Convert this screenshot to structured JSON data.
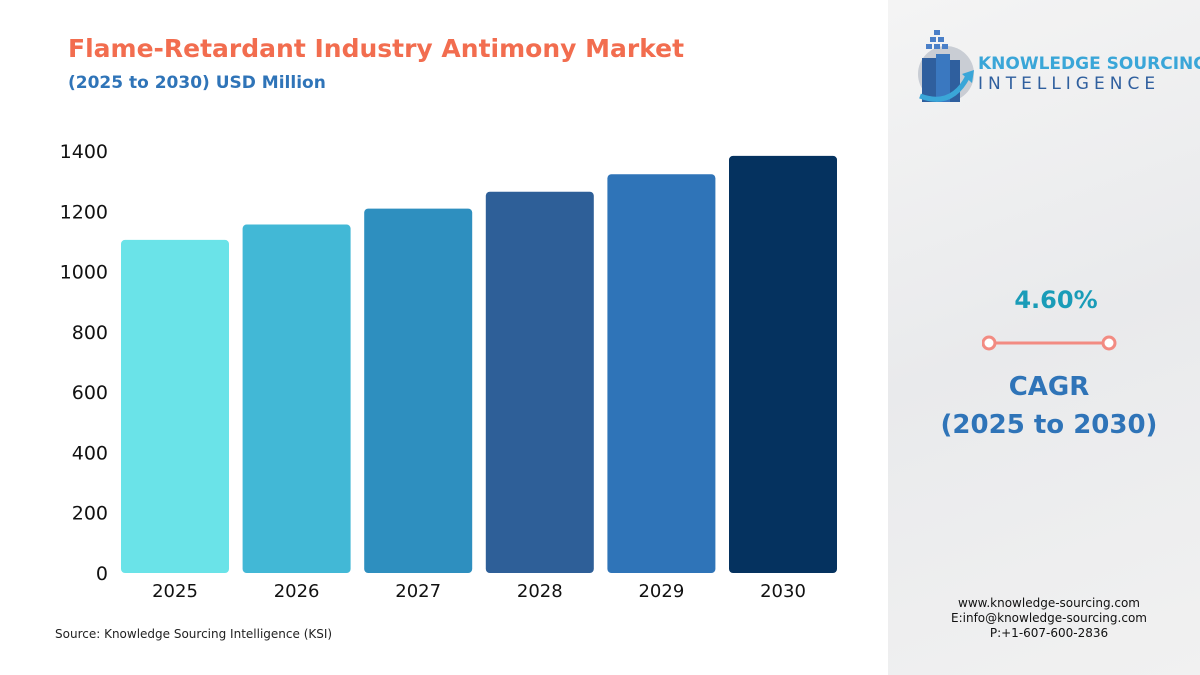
{
  "chart_data": {
    "type": "bar",
    "title": "Flame-Retardant Industry Antimony Market",
    "subtitle": "(2025 to 2030) USD Million",
    "categories": [
      "2025",
      "2026",
      "2027",
      "2028",
      "2029",
      "2030"
    ],
    "values": [
      1105,
      1156,
      1209,
      1265,
      1323,
      1384
    ],
    "colors": [
      "#6ae3e8",
      "#42b8d6",
      "#2e8fbf",
      "#2e5f98",
      "#2f74b8",
      "#05325f"
    ],
    "yticks": [
      0,
      200,
      400,
      600,
      800,
      1000,
      1200,
      1400
    ],
    "ylim": [
      0,
      1400
    ],
    "grid": false
  },
  "source": "Source: Knowledge Sourcing Intelligence (KSI)",
  "logo": {
    "line1": "KNOWLEDGE SOURCING",
    "line2": "INTELLIGENCE"
  },
  "cagr": {
    "value": "4.60%",
    "label": "CAGR",
    "period": "(2025 to 2030)",
    "accent": "#f28b82"
  },
  "contact": {
    "web": "www.knowledge-sourcing.com",
    "email": "E:info@knowledge-sourcing.com",
    "phone": "P:+1-607-600-2836"
  }
}
